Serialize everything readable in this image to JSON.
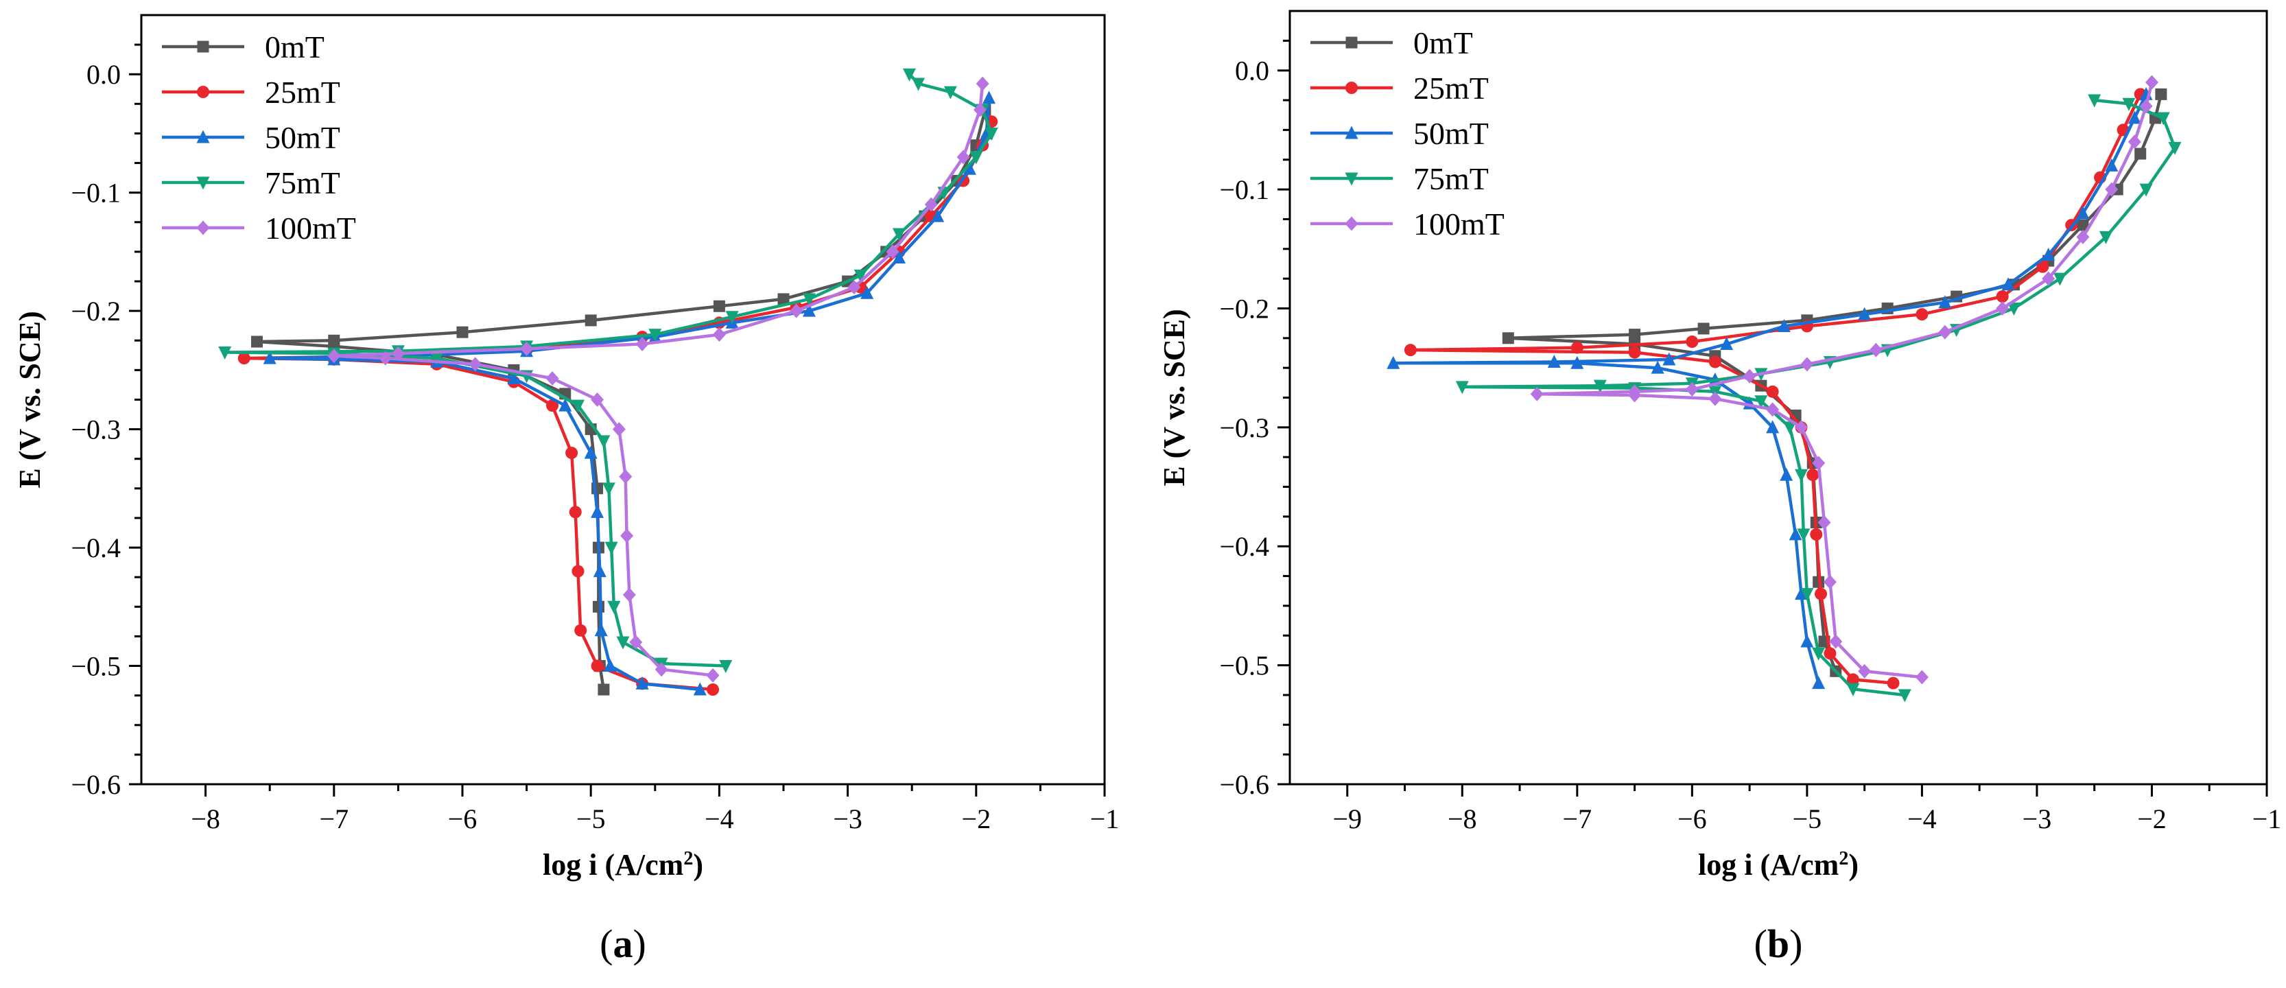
{
  "figure": {
    "panels": [
      "(a)",
      "(b)"
    ]
  },
  "chart_data": [
    {
      "type": "line",
      "panel_label": "(a)",
      "panel_letter": "a",
      "xlabel": "log i (A/cm2)",
      "ylabel": "E (V vs. SCE)",
      "xlim": [
        -8.5,
        -1
      ],
      "ylim": [
        -0.6,
        0.05
      ],
      "xticks": [
        -8,
        -7,
        -6,
        -5,
        -4,
        -3,
        -2,
        -1
      ],
      "yticks": [
        -0.6,
        -0.5,
        -0.4,
        -0.3,
        -0.2,
        -0.1,
        0.0
      ],
      "legend_position": "top-left",
      "series": [
        {
          "name": "0mT",
          "color": "#555555",
          "marker": "square",
          "points": [
            [
              -4.9,
              -0.52
            ],
            [
              -4.93,
              -0.5
            ],
            [
              -4.94,
              -0.45
            ],
            [
              -4.94,
              -0.4
            ],
            [
              -4.95,
              -0.35
            ],
            [
              -5.0,
              -0.3
            ],
            [
              -5.2,
              -0.27
            ],
            [
              -5.6,
              -0.25
            ],
            [
              -6.2,
              -0.237
            ],
            [
              -7.0,
              -0.23
            ],
            [
              -7.6,
              -0.226
            ],
            [
              -7.0,
              -0.225
            ],
            [
              -6.0,
              -0.218
            ],
            [
              -5.0,
              -0.208
            ],
            [
              -4.0,
              -0.196
            ],
            [
              -3.5,
              -0.19
            ],
            [
              -3.0,
              -0.175
            ],
            [
              -2.7,
              -0.15
            ],
            [
              -2.4,
              -0.12
            ],
            [
              -2.15,
              -0.09
            ],
            [
              -2.0,
              -0.06
            ],
            [
              -1.93,
              -0.03
            ]
          ]
        },
        {
          "name": "25mT",
          "color": "#e8262b",
          "marker": "circle",
          "points": [
            [
              -4.05,
              -0.52
            ],
            [
              -4.6,
              -0.515
            ],
            [
              -4.95,
              -0.5
            ],
            [
              -5.08,
              -0.47
            ],
            [
              -5.1,
              -0.42
            ],
            [
              -5.12,
              -0.37
            ],
            [
              -5.15,
              -0.32
            ],
            [
              -5.3,
              -0.28
            ],
            [
              -5.6,
              -0.26
            ],
            [
              -6.2,
              -0.245
            ],
            [
              -7.0,
              -0.241
            ],
            [
              -7.7,
              -0.24
            ],
            [
              -6.5,
              -0.238
            ],
            [
              -5.5,
              -0.233
            ],
            [
              -4.6,
              -0.222
            ],
            [
              -4.0,
              -0.21
            ],
            [
              -3.4,
              -0.197
            ],
            [
              -2.9,
              -0.18
            ],
            [
              -2.6,
              -0.15
            ],
            [
              -2.35,
              -0.12
            ],
            [
              -2.1,
              -0.09
            ],
            [
              -1.95,
              -0.06
            ],
            [
              -1.88,
              -0.04
            ]
          ]
        },
        {
          "name": "50mT",
          "color": "#1a6fd4",
          "marker": "triangle-up",
          "points": [
            [
              -4.15,
              -0.52
            ],
            [
              -4.6,
              -0.515
            ],
            [
              -4.85,
              -0.5
            ],
            [
              -4.92,
              -0.47
            ],
            [
              -4.93,
              -0.42
            ],
            [
              -4.95,
              -0.37
            ],
            [
              -5.0,
              -0.32
            ],
            [
              -5.2,
              -0.28
            ],
            [
              -5.6,
              -0.257
            ],
            [
              -6.2,
              -0.243
            ],
            [
              -7.0,
              -0.241
            ],
            [
              -7.5,
              -0.24
            ],
            [
              -6.5,
              -0.238
            ],
            [
              -5.5,
              -0.234
            ],
            [
              -4.5,
              -0.222
            ],
            [
              -3.9,
              -0.21
            ],
            [
              -3.3,
              -0.2
            ],
            [
              -2.85,
              -0.185
            ],
            [
              -2.6,
              -0.155
            ],
            [
              -2.3,
              -0.12
            ],
            [
              -2.05,
              -0.08
            ],
            [
              -1.92,
              -0.05
            ],
            [
              -1.9,
              -0.02
            ]
          ]
        },
        {
          "name": "75mT",
          "color": "#12a37a",
          "marker": "triangle-down",
          "points": [
            [
              -3.95,
              -0.5
            ],
            [
              -4.45,
              -0.498
            ],
            [
              -4.75,
              -0.48
            ],
            [
              -4.82,
              -0.45
            ],
            [
              -4.84,
              -0.4
            ],
            [
              -4.86,
              -0.35
            ],
            [
              -4.9,
              -0.31
            ],
            [
              -5.1,
              -0.28
            ],
            [
              -5.5,
              -0.255
            ],
            [
              -6.2,
              -0.24
            ],
            [
              -7.0,
              -0.236
            ],
            [
              -7.85,
              -0.235
            ],
            [
              -6.5,
              -0.234
            ],
            [
              -5.5,
              -0.23
            ],
            [
              -4.5,
              -0.22
            ],
            [
              -3.9,
              -0.205
            ],
            [
              -3.3,
              -0.19
            ],
            [
              -2.9,
              -0.17
            ],
            [
              -2.6,
              -0.135
            ],
            [
              -2.25,
              -0.1
            ],
            [
              -2.0,
              -0.07
            ],
            [
              -1.88,
              -0.05
            ],
            [
              -1.95,
              -0.03
            ],
            [
              -2.2,
              -0.015
            ],
            [
              -2.45,
              -0.008
            ],
            [
              -2.52,
              0.0
            ]
          ]
        },
        {
          "name": "100mT",
          "color": "#b873e3",
          "marker": "diamond",
          "points": [
            [
              -4.05,
              -0.508
            ],
            [
              -4.45,
              -0.503
            ],
            [
              -4.65,
              -0.48
            ],
            [
              -4.7,
              -0.44
            ],
            [
              -4.72,
              -0.39
            ],
            [
              -4.73,
              -0.34
            ],
            [
              -4.78,
              -0.3
            ],
            [
              -4.95,
              -0.275
            ],
            [
              -5.3,
              -0.257
            ],
            [
              -5.9,
              -0.245
            ],
            [
              -6.6,
              -0.24
            ],
            [
              -7.0,
              -0.238
            ],
            [
              -6.5,
              -0.236
            ],
            [
              -5.5,
              -0.232
            ],
            [
              -4.6,
              -0.228
            ],
            [
              -4.0,
              -0.22
            ],
            [
              -3.4,
              -0.2
            ],
            [
              -2.95,
              -0.18
            ],
            [
              -2.65,
              -0.15
            ],
            [
              -2.35,
              -0.11
            ],
            [
              -2.1,
              -0.07
            ],
            [
              -1.97,
              -0.03
            ],
            [
              -1.95,
              -0.008
            ]
          ]
        }
      ]
    },
    {
      "type": "line",
      "panel_label": "(b)",
      "panel_letter": "b",
      "xlabel": "log i (A/cm2)",
      "ylabel": "E (V vs. SCE)",
      "xlim": [
        -9.5,
        -1
      ],
      "ylim": [
        -0.6,
        0.05
      ],
      "xticks": [
        -9,
        -8,
        -7,
        -6,
        -5,
        -4,
        -3,
        -2,
        -1
      ],
      "yticks": [
        -0.6,
        -0.5,
        -0.4,
        -0.3,
        -0.2,
        -0.1,
        0.0
      ],
      "legend_position": "top-left",
      "series": [
        {
          "name": "0mT",
          "color": "#555555",
          "marker": "square",
          "points": [
            [
              -4.75,
              -0.505
            ],
            [
              -4.85,
              -0.48
            ],
            [
              -4.9,
              -0.43
            ],
            [
              -4.92,
              -0.38
            ],
            [
              -4.95,
              -0.33
            ],
            [
              -5.1,
              -0.29
            ],
            [
              -5.4,
              -0.265
            ],
            [
              -5.8,
              -0.24
            ],
            [
              -6.5,
              -0.23
            ],
            [
              -7.6,
              -0.225
            ],
            [
              -6.5,
              -0.222
            ],
            [
              -5.9,
              -0.217
            ],
            [
              -5.0,
              -0.21
            ],
            [
              -4.3,
              -0.2
            ],
            [
              -3.7,
              -0.19
            ],
            [
              -3.2,
              -0.18
            ],
            [
              -2.9,
              -0.16
            ],
            [
              -2.6,
              -0.13
            ],
            [
              -2.3,
              -0.1
            ],
            [
              -2.1,
              -0.07
            ],
            [
              -1.97,
              -0.04
            ],
            [
              -1.92,
              -0.02
            ]
          ]
        },
        {
          "name": "25mT",
          "color": "#e8262b",
          "marker": "circle",
          "points": [
            [
              -4.25,
              -0.515
            ],
            [
              -4.6,
              -0.512
            ],
            [
              -4.8,
              -0.49
            ],
            [
              -4.88,
              -0.44
            ],
            [
              -4.92,
              -0.39
            ],
            [
              -4.95,
              -0.34
            ],
            [
              -5.05,
              -0.3
            ],
            [
              -5.3,
              -0.27
            ],
            [
              -5.8,
              -0.245
            ],
            [
              -6.5,
              -0.237
            ],
            [
              -8.45,
              -0.235
            ],
            [
              -7.0,
              -0.233
            ],
            [
              -6.0,
              -0.228
            ],
            [
              -5.0,
              -0.215
            ],
            [
              -4.0,
              -0.205
            ],
            [
              -3.3,
              -0.19
            ],
            [
              -2.95,
              -0.165
            ],
            [
              -2.7,
              -0.13
            ],
            [
              -2.45,
              -0.09
            ],
            [
              -2.25,
              -0.05
            ],
            [
              -2.1,
              -0.02
            ]
          ]
        },
        {
          "name": "50mT",
          "color": "#1a6fd4",
          "marker": "triangle-up",
          "points": [
            [
              -4.9,
              -0.515
            ],
            [
              -5.0,
              -0.48
            ],
            [
              -5.05,
              -0.44
            ],
            [
              -5.1,
              -0.39
            ],
            [
              -5.18,
              -0.34
            ],
            [
              -5.3,
              -0.3
            ],
            [
              -5.5,
              -0.28
            ],
            [
              -5.8,
              -0.26
            ],
            [
              -6.3,
              -0.25
            ],
            [
              -7.0,
              -0.246
            ],
            [
              -8.6,
              -0.246
            ],
            [
              -7.2,
              -0.245
            ],
            [
              -6.2,
              -0.243
            ],
            [
              -5.7,
              -0.23
            ],
            [
              -5.2,
              -0.215
            ],
            [
              -4.5,
              -0.205
            ],
            [
              -3.8,
              -0.195
            ],
            [
              -3.25,
              -0.18
            ],
            [
              -2.9,
              -0.155
            ],
            [
              -2.6,
              -0.12
            ],
            [
              -2.35,
              -0.08
            ],
            [
              -2.15,
              -0.04
            ],
            [
              -2.05,
              -0.02
            ]
          ]
        },
        {
          "name": "75mT",
          "color": "#12a37a",
          "marker": "triangle-down",
          "points": [
            [
              -4.15,
              -0.525
            ],
            [
              -4.6,
              -0.52
            ],
            [
              -4.9,
              -0.49
            ],
            [
              -5.0,
              -0.44
            ],
            [
              -5.03,
              -0.39
            ],
            [
              -5.05,
              -0.34
            ],
            [
              -5.15,
              -0.3
            ],
            [
              -5.4,
              -0.278
            ],
            [
              -5.8,
              -0.27
            ],
            [
              -6.5,
              -0.267
            ],
            [
              -8.0,
              -0.266
            ],
            [
              -6.8,
              -0.265
            ],
            [
              -6.0,
              -0.263
            ],
            [
              -5.4,
              -0.255
            ],
            [
              -4.8,
              -0.245
            ],
            [
              -4.3,
              -0.235
            ],
            [
              -3.7,
              -0.218
            ],
            [
              -3.2,
              -0.2
            ],
            [
              -2.8,
              -0.175
            ],
            [
              -2.4,
              -0.14
            ],
            [
              -2.05,
              -0.1
            ],
            [
              -1.8,
              -0.065
            ],
            [
              -1.9,
              -0.04
            ],
            [
              -2.2,
              -0.028
            ],
            [
              -2.5,
              -0.025
            ]
          ]
        },
        {
          "name": "100mT",
          "color": "#b873e3",
          "marker": "diamond",
          "points": [
            [
              -4.0,
              -0.51
            ],
            [
              -4.5,
              -0.505
            ],
            [
              -4.75,
              -0.48
            ],
            [
              -4.8,
              -0.43
            ],
            [
              -4.85,
              -0.38
            ],
            [
              -4.9,
              -0.33
            ],
            [
              -5.05,
              -0.3
            ],
            [
              -5.3,
              -0.285
            ],
            [
              -5.8,
              -0.276
            ],
            [
              -6.5,
              -0.273
            ],
            [
              -7.35,
              -0.272
            ],
            [
              -6.5,
              -0.27
            ],
            [
              -6.0,
              -0.268
            ],
            [
              -5.5,
              -0.257
            ],
            [
              -5.0,
              -0.247
            ],
            [
              -4.4,
              -0.235
            ],
            [
              -3.8,
              -0.22
            ],
            [
              -3.3,
              -0.2
            ],
            [
              -2.9,
              -0.175
            ],
            [
              -2.6,
              -0.14
            ],
            [
              -2.35,
              -0.1
            ],
            [
              -2.15,
              -0.06
            ],
            [
              -2.05,
              -0.03
            ],
            [
              -2.0,
              -0.01
            ]
          ]
        }
      ]
    }
  ]
}
